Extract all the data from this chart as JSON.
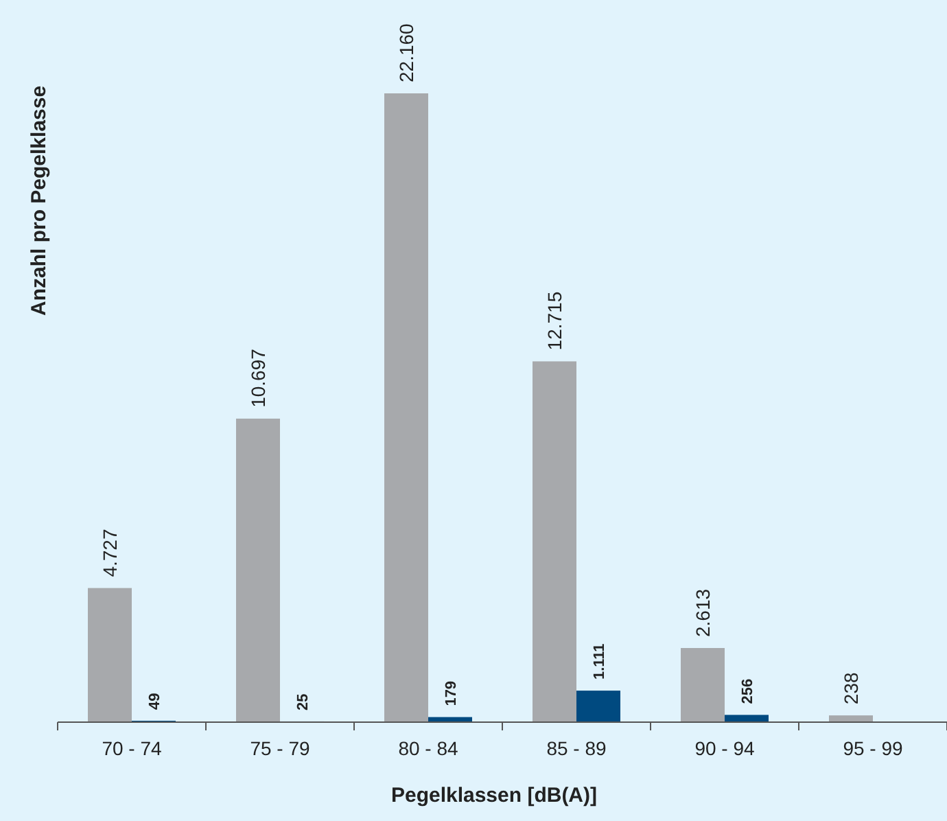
{
  "chart_data": {
    "type": "bar",
    "xlabel": "Pegelklassen [dB(A)]",
    "ylabel": "Anzahl pro Pegelklasse",
    "categories": [
      "70 - 74",
      "75 - 79",
      "80 - 84",
      "85 - 89",
      "90 - 94",
      "95 - 99"
    ],
    "series": [
      {
        "color": "#a7a9ac",
        "values": [
          4727,
          10697,
          22160,
          12715,
          2613,
          238
        ],
        "value_labels": [
          "4.727",
          "10.697",
          "22.160",
          "12.715",
          "2.613",
          "238"
        ]
      },
      {
        "color": "#004a80",
        "values": [
          49,
          25,
          179,
          1111,
          256,
          null
        ],
        "value_labels": [
          "49",
          "25",
          "179",
          "1.111",
          "256",
          null
        ]
      }
    ]
  }
}
